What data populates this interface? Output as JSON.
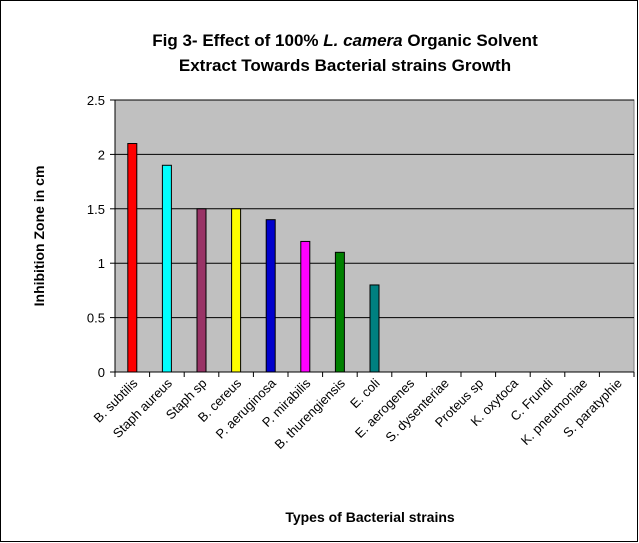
{
  "chart_data": {
    "type": "bar",
    "title": [
      "Fig 3-  Effect of 100% ",
      "L. camera",
      " Organic Solvent",
      "Extract Towards Bacterial strains Growth"
    ],
    "x_label": "Types of Bacterial strains",
    "y_label": "Inhibition Zone in cm",
    "categories": [
      "B. subtilis",
      "Staph aureus",
      "Staph sp",
      "B. cereus",
      "P. aeruginosa",
      "P. mirabilis",
      "B. thurengiensis",
      "E. coli",
      "E. aerogenes",
      "S. dysenteriae",
      "Proteus sp",
      "K. oxytoca",
      "C. Frundi",
      "K. pneumoniae",
      "S. paratyphie"
    ],
    "values": [
      2.1,
      1.9,
      1.5,
      1.5,
      1.4,
      1.2,
      1.1,
      0.8,
      0,
      0,
      0,
      0,
      0,
      0,
      0
    ],
    "colors": [
      "#ff0000",
      "#00ffff",
      "#993366",
      "#ffff00",
      "#0000cc",
      "#ff00ff",
      "#008000",
      "#008080",
      null,
      null,
      null,
      null,
      null,
      null,
      null
    ],
    "ylim": [
      0,
      2.5
    ],
    "yticks": [
      0,
      0.5,
      1,
      1.5,
      2,
      2.5
    ],
    "grid": true,
    "plot_background": "#c0c0c0"
  }
}
